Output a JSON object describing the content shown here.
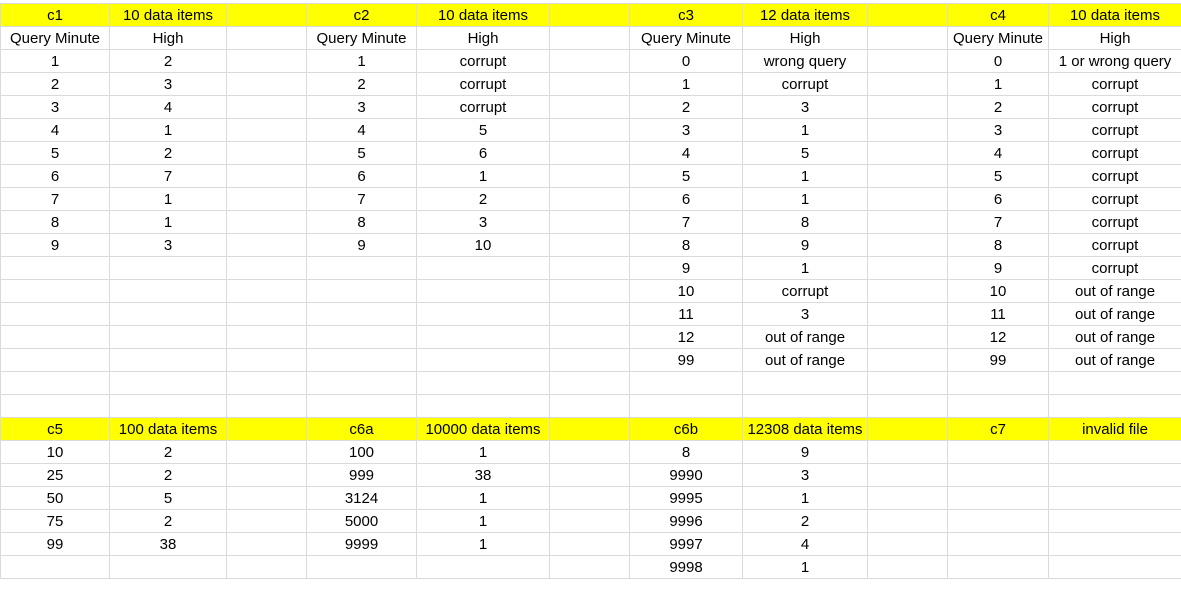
{
  "rows": [
    [
      "c1",
      "10 data items",
      "",
      "c2",
      "10 data items",
      "",
      "c3",
      "12 data items",
      "",
      "c4",
      "10 data items"
    ],
    [
      "Query Minute",
      "High",
      "",
      "Query Minute",
      "High",
      "",
      "Query Minute",
      "High",
      "",
      "Query Minute",
      "High"
    ],
    [
      "1",
      "2",
      "",
      "1",
      "corrupt",
      "",
      "0",
      "wrong query",
      "",
      "0",
      "1 or wrong query"
    ],
    [
      "2",
      "3",
      "",
      "2",
      "corrupt",
      "",
      "1",
      "corrupt",
      "",
      "1",
      "corrupt"
    ],
    [
      "3",
      "4",
      "",
      "3",
      "corrupt",
      "",
      "2",
      "3",
      "",
      "2",
      "corrupt"
    ],
    [
      "4",
      "1",
      "",
      "4",
      "5",
      "",
      "3",
      "1",
      "",
      "3",
      "corrupt"
    ],
    [
      "5",
      "2",
      "",
      "5",
      "6",
      "",
      "4",
      "5",
      "",
      "4",
      "corrupt"
    ],
    [
      "6",
      "7",
      "",
      "6",
      "1",
      "",
      "5",
      "1",
      "",
      "5",
      "corrupt"
    ],
    [
      "7",
      "1",
      "",
      "7",
      "2",
      "",
      "6",
      "1",
      "",
      "6",
      "corrupt"
    ],
    [
      "8",
      "1",
      "",
      "8",
      "3",
      "",
      "7",
      "8",
      "",
      "7",
      "corrupt"
    ],
    [
      "9",
      "3",
      "",
      "9",
      "10",
      "",
      "8",
      "9",
      "",
      "8",
      "corrupt"
    ],
    [
      "",
      "",
      "",
      "",
      "",
      "",
      "9",
      "1",
      "",
      "9",
      "corrupt"
    ],
    [
      "",
      "",
      "",
      "",
      "",
      "",
      "10",
      "corrupt",
      "",
      "10",
      "out of range"
    ],
    [
      "",
      "",
      "",
      "",
      "",
      "",
      "11",
      "3",
      "",
      "11",
      "out of range"
    ],
    [
      "",
      "",
      "",
      "",
      "",
      "",
      "12",
      "out of range",
      "",
      "12",
      "out of range"
    ],
    [
      "",
      "",
      "",
      "",
      "",
      "",
      "99",
      "out of range",
      "",
      "99",
      "out of range"
    ],
    [
      "",
      "",
      "",
      "",
      "",
      "",
      "",
      "",
      "",
      "",
      ""
    ],
    [
      "",
      "",
      "",
      "",
      "",
      "",
      "",
      "",
      "",
      "",
      ""
    ],
    [
      "c5",
      "100 data items",
      "",
      "c6a",
      "10000 data items",
      "",
      "c6b",
      "12308 data items",
      "",
      "c7",
      "invalid file"
    ],
    [
      "10",
      "2",
      "",
      "100",
      "1",
      "",
      "8",
      "9",
      "",
      "",
      ""
    ],
    [
      "25",
      "2",
      "",
      "999",
      "38",
      "",
      "9990",
      "3",
      "",
      "",
      ""
    ],
    [
      "50",
      "5",
      "",
      "3124",
      "1",
      "",
      "9995",
      "1",
      "",
      "",
      ""
    ],
    [
      "75",
      "2",
      "",
      "5000",
      "1",
      "",
      "9996",
      "2",
      "",
      "",
      ""
    ],
    [
      "99",
      "38",
      "",
      "9999",
      "1",
      "",
      "9997",
      "4",
      "",
      "",
      ""
    ],
    [
      "",
      "",
      "",
      "",
      "",
      "",
      "9998",
      "1",
      "",
      "",
      ""
    ]
  ],
  "highlight_color": "#ffff00",
  "highlighted_rows": [
    0,
    18
  ]
}
